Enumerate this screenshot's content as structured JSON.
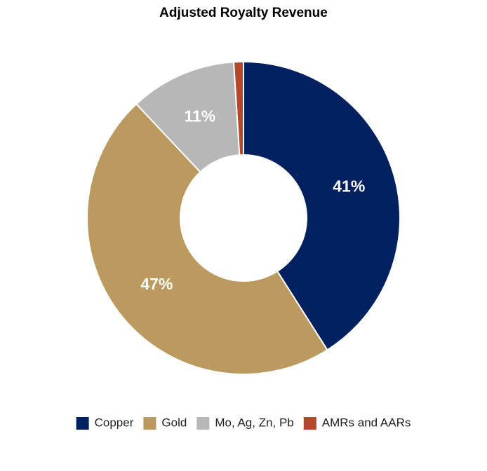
{
  "chart_data": {
    "type": "donut",
    "title": "Adjusted Royalty Revenue",
    "categories": [
      "Copper",
      "Gold",
      "Mo, Ag, Zn, Pb",
      "AMRs and AARs"
    ],
    "values": [
      41,
      47,
      11,
      1
    ],
    "value_labels": [
      "41%",
      "47%",
      "11%",
      null
    ],
    "colors": [
      "#002060",
      "#bc9a5f",
      "#b7b7b7",
      "#b5472a"
    ],
    "legend": "bottom"
  }
}
